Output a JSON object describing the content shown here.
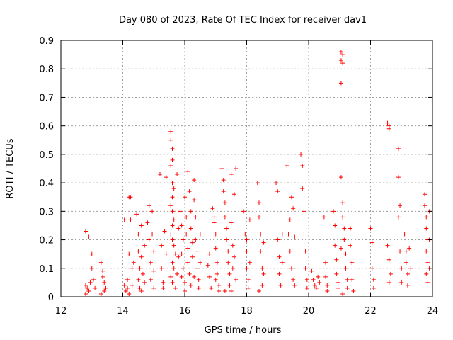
{
  "chart_data": {
    "type": "scatter",
    "title": "Day 080 of 2023, Rate Of TEC Index for receiver dav1",
    "xlabel": "GPS time / hours",
    "ylabel": "ROTI / TECUs",
    "xlim": [
      12,
      24
    ],
    "ylim": [
      0,
      0.9
    ],
    "x_ticks": [
      12,
      14,
      16,
      18,
      20,
      22,
      24
    ],
    "y_ticks": [
      0,
      0.1,
      0.2,
      0.3,
      0.4,
      0.5,
      0.6,
      0.7,
      0.8,
      0.9
    ],
    "grid": true,
    "marker": "plus",
    "color": "#ff0000",
    "points": [
      [
        12.8,
        0.23
      ],
      [
        12.9,
        0.21
      ],
      [
        12.8,
        0.04
      ],
      [
        12.85,
        0.03
      ],
      [
        12.9,
        0.02
      ],
      [
        12.95,
        0.05
      ],
      [
        13.0,
        0.1
      ],
      [
        13.0,
        0.15
      ],
      [
        13.05,
        0.06
      ],
      [
        13.1,
        0.03
      ],
      [
        12.8,
        0.01
      ],
      [
        12.9,
        0.02
      ],
      [
        13.3,
        0.12
      ],
      [
        13.35,
        0.09
      ],
      [
        13.4,
        0.05
      ],
      [
        13.4,
        0.02
      ],
      [
        13.45,
        0.03
      ],
      [
        13.35,
        0.07
      ],
      [
        13.3,
        0.01
      ],
      [
        14.05,
        0.27
      ],
      [
        14.05,
        0.04
      ],
      [
        14.1,
        0.02
      ],
      [
        14.15,
        0.06
      ],
      [
        14.2,
        0.15
      ],
      [
        14.2,
        0.35
      ],
      [
        14.25,
        0.27
      ],
      [
        14.25,
        0.35
      ],
      [
        14.3,
        0.1
      ],
      [
        14.3,
        0.04
      ],
      [
        14.35,
        0.12
      ],
      [
        14.2,
        0.01
      ],
      [
        14.15,
        0.03
      ],
      [
        14.45,
        0.29
      ],
      [
        14.5,
        0.22
      ],
      [
        14.5,
        0.16
      ],
      [
        14.55,
        0.1
      ],
      [
        14.5,
        0.06
      ],
      [
        14.55,
        0.03
      ],
      [
        14.6,
        0.25
      ],
      [
        14.6,
        0.14
      ],
      [
        14.65,
        0.08
      ],
      [
        14.6,
        0.02
      ],
      [
        14.7,
        0.18
      ],
      [
        14.7,
        0.05
      ],
      [
        14.8,
        0.26
      ],
      [
        14.85,
        0.32
      ],
      [
        14.85,
        0.2
      ],
      [
        14.9,
        0.12
      ],
      [
        14.9,
        0.06
      ],
      [
        14.95,
        0.3
      ],
      [
        14.95,
        0.22
      ],
      [
        15.0,
        0.16
      ],
      [
        15.0,
        0.09
      ],
      [
        15.0,
        0.03
      ],
      [
        15.2,
        0.43
      ],
      [
        15.25,
        0.18
      ],
      [
        15.25,
        0.1
      ],
      [
        15.3,
        0.05
      ],
      [
        15.3,
        0.03
      ],
      [
        15.35,
        0.23
      ],
      [
        15.4,
        0.42
      ],
      [
        15.4,
        0.15
      ],
      [
        15.55,
        0.58
      ],
      [
        15.55,
        0.55
      ],
      [
        15.6,
        0.52
      ],
      [
        15.6,
        0.48
      ],
      [
        15.55,
        0.46
      ],
      [
        15.6,
        0.4
      ],
      [
        15.65,
        0.38
      ],
      [
        15.6,
        0.35
      ],
      [
        15.55,
        0.32
      ],
      [
        15.6,
        0.3
      ],
      [
        15.65,
        0.27
      ],
      [
        15.6,
        0.25
      ],
      [
        15.55,
        0.22
      ],
      [
        15.6,
        0.2
      ],
      [
        15.65,
        0.18
      ],
      [
        15.7,
        0.15
      ],
      [
        15.6,
        0.12
      ],
      [
        15.65,
        0.1
      ],
      [
        15.55,
        0.07
      ],
      [
        15.6,
        0.05
      ],
      [
        15.7,
        0.03
      ],
      [
        15.75,
        0.43
      ],
      [
        15.8,
        0.24
      ],
      [
        15.8,
        0.14
      ],
      [
        15.75,
        0.08
      ],
      [
        15.85,
        0.3
      ],
      [
        15.9,
        0.25
      ],
      [
        15.95,
        0.2
      ],
      [
        15.9,
        0.15
      ],
      [
        15.95,
        0.1
      ],
      [
        16.0,
        0.05
      ],
      [
        16.0,
        0.35
      ],
      [
        16.05,
        0.28
      ],
      [
        16.05,
        0.22
      ],
      [
        16.1,
        0.44
      ],
      [
        16.1,
        0.17
      ],
      [
        16.1,
        0.12
      ],
      [
        16.15,
        0.37
      ],
      [
        16.15,
        0.08
      ],
      [
        16.2,
        0.3
      ],
      [
        16.2,
        0.24
      ],
      [
        16.25,
        0.19
      ],
      [
        16.25,
        0.14
      ],
      [
        16.3,
        0.41
      ],
      [
        16.3,
        0.34
      ],
      [
        16.35,
        0.28
      ],
      [
        16.35,
        0.2
      ],
      [
        16.4,
        0.16
      ],
      [
        16.4,
        0.1
      ],
      [
        16.45,
        0.06
      ],
      [
        16.45,
        0.03
      ],
      [
        16.5,
        0.22
      ],
      [
        16.5,
        0.12
      ],
      [
        15.9,
        0.07
      ],
      [
        16.0,
        0.02
      ],
      [
        16.2,
        0.04
      ],
      [
        16.3,
        0.07
      ],
      [
        16.75,
        0.11
      ],
      [
        16.8,
        0.07
      ],
      [
        16.85,
        0.03
      ],
      [
        16.8,
        0.15
      ],
      [
        16.9,
        0.31
      ],
      [
        16.95,
        0.26
      ],
      [
        17.0,
        0.22
      ],
      [
        17.0,
        0.17
      ],
      [
        17.05,
        0.12
      ],
      [
        17.05,
        0.08
      ],
      [
        17.1,
        0.04
      ],
      [
        17.1,
        0.02
      ],
      [
        16.95,
        0.28
      ],
      [
        17.0,
        0.06
      ],
      [
        17.2,
        0.45
      ],
      [
        17.25,
        0.41
      ],
      [
        17.25,
        0.37
      ],
      [
        17.3,
        0.33
      ],
      [
        17.3,
        0.28
      ],
      [
        17.35,
        0.24
      ],
      [
        17.35,
        0.2
      ],
      [
        17.4,
        0.16
      ],
      [
        17.4,
        0.12
      ],
      [
        17.45,
        0.08
      ],
      [
        17.45,
        0.04
      ],
      [
        17.5,
        0.43
      ],
      [
        17.5,
        0.26
      ],
      [
        17.55,
        0.18
      ],
      [
        17.55,
        0.1
      ],
      [
        17.6,
        0.36
      ],
      [
        17.6,
        0.14
      ],
      [
        17.65,
        0.45
      ],
      [
        17.65,
        0.06
      ],
      [
        17.3,
        0.02
      ],
      [
        17.5,
        0.02
      ],
      [
        17.9,
        0.3
      ],
      [
        17.95,
        0.22
      ],
      [
        18.0,
        0.16
      ],
      [
        18.0,
        0.1
      ],
      [
        18.05,
        0.06
      ],
      [
        18.05,
        0.03
      ],
      [
        18.1,
        0.27
      ],
      [
        18.1,
        0.12
      ],
      [
        18.0,
        0.2
      ],
      [
        18.35,
        0.4
      ],
      [
        18.4,
        0.33
      ],
      [
        18.4,
        0.28
      ],
      [
        18.45,
        0.22
      ],
      [
        18.45,
        0.16
      ],
      [
        18.5,
        0.1
      ],
      [
        18.5,
        0.04
      ],
      [
        18.55,
        0.19
      ],
      [
        18.55,
        0.08
      ],
      [
        18.4,
        0.02
      ],
      [
        18.95,
        0.4
      ],
      [
        19.0,
        0.37
      ],
      [
        19.0,
        0.2
      ],
      [
        19.05,
        0.14
      ],
      [
        19.05,
        0.08
      ],
      [
        19.1,
        0.04
      ],
      [
        19.15,
        0.22
      ],
      [
        19.15,
        0.12
      ],
      [
        19.3,
        0.46
      ],
      [
        19.35,
        0.22
      ],
      [
        19.4,
        0.27
      ],
      [
        19.4,
        0.16
      ],
      [
        19.45,
        0.35
      ],
      [
        19.45,
        0.1
      ],
      [
        19.5,
        0.31
      ],
      [
        19.5,
        0.06
      ],
      [
        19.55,
        0.21
      ],
      [
        19.55,
        0.04
      ],
      [
        19.75,
        0.5
      ],
      [
        19.8,
        0.46
      ],
      [
        19.8,
        0.38
      ],
      [
        19.85,
        0.3
      ],
      [
        19.85,
        0.22
      ],
      [
        19.9,
        0.16
      ],
      [
        19.9,
        0.1
      ],
      [
        19.95,
        0.06
      ],
      [
        19.95,
        0.03
      ],
      [
        20.1,
        0.09
      ],
      [
        20.15,
        0.06
      ],
      [
        20.2,
        0.04
      ],
      [
        20.25,
        0.03
      ],
      [
        20.3,
        0.07
      ],
      [
        20.35,
        0.05
      ],
      [
        20.5,
        0.28
      ],
      [
        20.55,
        0.12
      ],
      [
        20.55,
        0.07
      ],
      [
        20.6,
        0.04
      ],
      [
        20.6,
        0.02
      ],
      [
        20.8,
        0.3
      ],
      [
        20.85,
        0.25
      ],
      [
        20.85,
        0.18
      ],
      [
        20.9,
        0.13
      ],
      [
        20.9,
        0.08
      ],
      [
        20.95,
        0.05
      ],
      [
        20.95,
        0.03
      ],
      [
        21.05,
        0.86
      ],
      [
        21.1,
        0.85
      ],
      [
        21.05,
        0.83
      ],
      [
        21.1,
        0.82
      ],
      [
        21.05,
        0.75
      ],
      [
        21.05,
        0.42
      ],
      [
        21.1,
        0.33
      ],
      [
        21.1,
        0.28
      ],
      [
        21.15,
        0.24
      ],
      [
        21.15,
        0.2
      ],
      [
        21.2,
        0.15
      ],
      [
        21.2,
        0.1
      ],
      [
        21.25,
        0.06
      ],
      [
        21.25,
        0.03
      ],
      [
        21.05,
        0.17
      ],
      [
        21.1,
        0.01
      ],
      [
        21.35,
        0.24
      ],
      [
        21.35,
        0.18
      ],
      [
        21.4,
        0.12
      ],
      [
        21.4,
        0.06
      ],
      [
        21.45,
        0.02
      ],
      [
        22.0,
        0.24
      ],
      [
        22.05,
        0.19
      ],
      [
        22.05,
        0.1
      ],
      [
        22.1,
        0.06
      ],
      [
        22.1,
        0.03
      ],
      [
        22.55,
        0.61
      ],
      [
        22.6,
        0.6
      ],
      [
        22.6,
        0.59
      ],
      [
        22.55,
        0.18
      ],
      [
        22.6,
        0.13
      ],
      [
        22.65,
        0.08
      ],
      [
        22.6,
        0.05
      ],
      [
        22.9,
        0.52
      ],
      [
        22.9,
        0.42
      ],
      [
        22.95,
        0.32
      ],
      [
        22.9,
        0.28
      ],
      [
        22.95,
        0.16
      ],
      [
        23.0,
        0.1
      ],
      [
        23.0,
        0.05
      ],
      [
        23.1,
        0.22
      ],
      [
        23.15,
        0.16
      ],
      [
        23.15,
        0.12
      ],
      [
        23.2,
        0.08
      ],
      [
        23.2,
        0.04
      ],
      [
        23.25,
        0.17
      ],
      [
        23.3,
        0.1
      ],
      [
        23.75,
        0.36
      ],
      [
        23.75,
        0.32
      ],
      [
        23.8,
        0.28
      ],
      [
        23.8,
        0.24
      ],
      [
        23.85,
        0.2
      ],
      [
        23.8,
        0.16
      ],
      [
        23.85,
        0.12
      ],
      [
        23.8,
        0.08
      ],
      [
        23.85,
        0.05
      ],
      [
        23.9,
        0.3
      ],
      [
        23.9,
        0.2
      ],
      [
        23.9,
        0.1
      ]
    ]
  }
}
